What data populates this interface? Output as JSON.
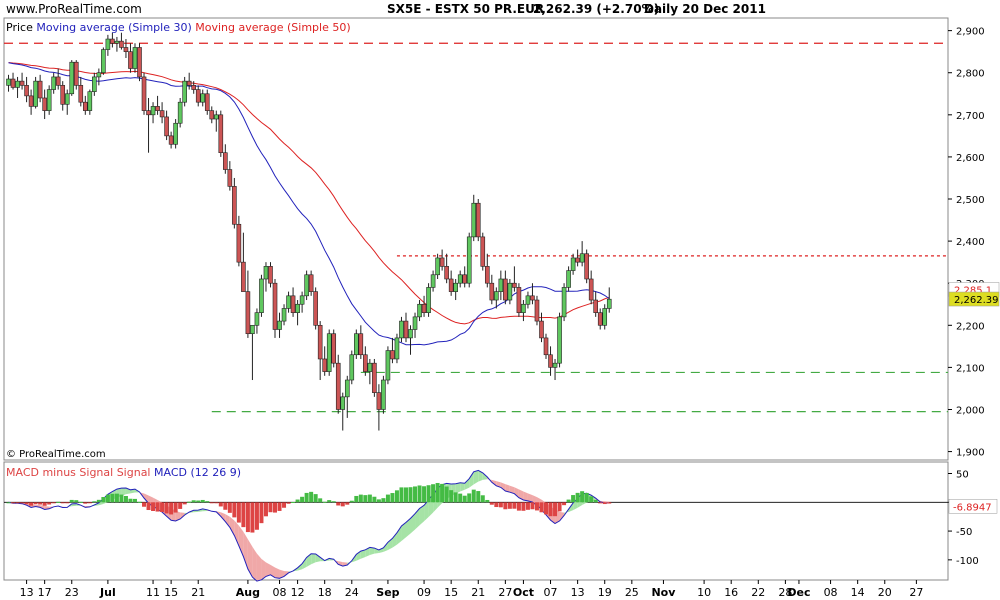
{
  "header": {
    "site": "www.ProRealTime.com",
    "instrument": "SX5E - ESTX 50 PR.EUR",
    "quote": "2,262.39 (+2.70%)",
    "period": "Daily 20 Dec 2011",
    "copyright": "© ProRealTime.com"
  },
  "colors": {
    "bull": "#5fc75f",
    "bear": "#cc5555",
    "ma30": "#2222bb",
    "ma50": "#dd2222",
    "macd_pos": "#44bb44",
    "macd_neg": "#dd4444"
  },
  "chart_data": [
    {
      "type": "candlestick",
      "legend": [
        {
          "label": "Price",
          "color": "#000000"
        },
        {
          "label": "Moving average (Simple 30)",
          "color": "#2222bb"
        },
        {
          "label": "Moving average (Simple 50)",
          "color": "#dd2222"
        }
      ],
      "yticks": [
        "2,900",
        "2,800",
        "2,700",
        "2,600",
        "2,500",
        "2,400",
        "2,300",
        "2,200",
        "2,100",
        "2,000",
        "1,900"
      ],
      "ylim": [
        1880,
        2930
      ],
      "xticks": [
        {
          "label": "13",
          "day": -18,
          "month": false
        },
        {
          "label": "17",
          "day": -14,
          "month": false
        },
        {
          "label": "23",
          "day": -8,
          "month": false
        },
        {
          "label": "Jul",
          "day": 0,
          "month": true
        },
        {
          "label": "11",
          "day": 10,
          "month": false
        },
        {
          "label": "15",
          "day": 14,
          "month": false
        },
        {
          "label": "21",
          "day": 20,
          "month": false
        },
        {
          "label": "Aug",
          "day": 31,
          "month": true
        },
        {
          "label": "08",
          "day": 38,
          "month": false
        },
        {
          "label": "12",
          "day": 42,
          "month": false
        },
        {
          "label": "18",
          "day": 48,
          "month": false
        },
        {
          "label": "24",
          "day": 54,
          "month": false
        },
        {
          "label": "Sep",
          "day": 62,
          "month": true
        },
        {
          "label": "09",
          "day": 70,
          "month": false
        },
        {
          "label": "15",
          "day": 76,
          "month": false
        },
        {
          "label": "21",
          "day": 82,
          "month": false
        },
        {
          "label": "27",
          "day": 88,
          "month": false
        },
        {
          "label": "Oct",
          "day": 92,
          "month": true
        },
        {
          "label": "07",
          "day": 98,
          "month": false
        },
        {
          "label": "13",
          "day": 104,
          "month": false
        },
        {
          "label": "19",
          "day": 110,
          "month": false
        },
        {
          "label": "25",
          "day": 116,
          "month": false
        },
        {
          "label": "Nov",
          "day": 123,
          "month": true
        },
        {
          "label": "10",
          "day": 132,
          "month": false
        },
        {
          "label": "16",
          "day": 138,
          "month": false
        },
        {
          "label": "22",
          "day": 144,
          "month": false
        },
        {
          "label": "28",
          "day": 150,
          "month": false
        },
        {
          "label": "Dec",
          "day": 153,
          "month": true
        },
        {
          "label": "08",
          "day": 160,
          "month": false
        },
        {
          "label": "14",
          "day": 166,
          "month": false
        },
        {
          "label": "20",
          "day": 172,
          "month": false
        },
        {
          "label": "27",
          "day": 179,
          "month": false
        }
      ],
      "xlim": [
        -23,
        186
      ],
      "candles": [
        [
          -22,
          2770,
          2795,
          2755,
          2785
        ],
        [
          -21,
          2785,
          2800,
          2760,
          2765
        ],
        [
          -20,
          2765,
          2790,
          2740,
          2780
        ],
        [
          -19,
          2780,
          2800,
          2760,
          2770
        ],
        [
          -18,
          2770,
          2790,
          2730,
          2745
        ],
        [
          -17,
          2745,
          2760,
          2700,
          2720
        ],
        [
          -16,
          2720,
          2790,
          2715,
          2780
        ],
        [
          -15,
          2780,
          2795,
          2730,
          2740
        ],
        [
          -14,
          2740,
          2760,
          2690,
          2710
        ],
        [
          -13,
          2710,
          2770,
          2700,
          2760
        ],
        [
          -12,
          2760,
          2800,
          2750,
          2790
        ],
        [
          -11,
          2790,
          2810,
          2760,
          2770
        ],
        [
          -10,
          2770,
          2780,
          2710,
          2725
        ],
        [
          -9,
          2725,
          2760,
          2700,
          2750
        ],
        [
          -8,
          2750,
          2830,
          2745,
          2825
        ],
        [
          -7,
          2825,
          2830,
          2760,
          2770
        ],
        [
          -6,
          2770,
          2790,
          2720,
          2730
        ],
        [
          -5,
          2730,
          2745,
          2700,
          2710
        ],
        [
          -4,
          2710,
          2760,
          2700,
          2755
        ],
        [
          -3,
          2755,
          2800,
          2745,
          2790
        ],
        [
          -2,
          2790,
          2810,
          2770,
          2800
        ],
        [
          -1,
          2800,
          2860,
          2795,
          2855
        ],
        [
          0,
          2855,
          2890,
          2840,
          2880
        ],
        [
          1,
          2880,
          2895,
          2860,
          2870
        ],
        [
          2,
          2870,
          2885,
          2850,
          2875
        ],
        [
          3,
          2875,
          2895,
          2855,
          2860
        ],
        [
          4,
          2860,
          2880,
          2835,
          2850
        ],
        [
          5,
          2850,
          2870,
          2800,
          2810
        ],
        [
          6,
          2810,
          2870,
          2800,
          2860
        ],
        [
          7,
          2860,
          2870,
          2780,
          2790
        ],
        [
          8,
          2790,
          2800,
          2700,
          2710
        ],
        [
          9,
          2710,
          2740,
          2610,
          2700
        ],
        [
          10,
          2700,
          2730,
          2680,
          2720
        ],
        [
          11,
          2720,
          2745,
          2700,
          2710
        ],
        [
          12,
          2710,
          2730,
          2680,
          2695
        ],
        [
          13,
          2695,
          2710,
          2640,
          2650
        ],
        [
          14,
          2650,
          2660,
          2620,
          2630
        ],
        [
          15,
          2630,
          2690,
          2620,
          2680
        ],
        [
          16,
          2680,
          2740,
          2670,
          2730
        ],
        [
          17,
          2730,
          2790,
          2720,
          2780
        ],
        [
          18,
          2780,
          2800,
          2760,
          2770
        ],
        [
          19,
          2770,
          2780,
          2750,
          2760
        ],
        [
          20,
          2760,
          2770,
          2720,
          2730
        ],
        [
          21,
          2730,
          2760,
          2720,
          2750
        ],
        [
          22,
          2750,
          2760,
          2700,
          2710
        ],
        [
          23,
          2710,
          2720,
          2680,
          2690
        ],
        [
          24,
          2690,
          2710,
          2660,
          2700
        ],
        [
          25,
          2700,
          2710,
          2600,
          2610
        ],
        [
          26,
          2610,
          2630,
          2560,
          2570
        ],
        [
          27,
          2570,
          2590,
          2520,
          2530
        ],
        [
          28,
          2530,
          2550,
          2430,
          2440
        ],
        [
          29,
          2440,
          2460,
          2340,
          2350
        ],
        [
          30,
          2350,
          2420,
          2290,
          2280
        ],
        [
          31,
          2280,
          2330,
          2170,
          2180
        ],
        [
          32,
          2180,
          2200,
          2070,
          2200
        ],
        [
          33,
          2200,
          2240,
          2180,
          2230
        ],
        [
          34,
          2230,
          2320,
          2220,
          2310
        ],
        [
          35,
          2310,
          2350,
          2280,
          2340
        ],
        [
          36,
          2340,
          2350,
          2290,
          2300
        ],
        [
          37,
          2300,
          2310,
          2170,
          2190
        ],
        [
          38,
          2190,
          2230,
          2170,
          2210
        ],
        [
          39,
          2210,
          2250,
          2200,
          2240
        ],
        [
          40,
          2240,
          2280,
          2230,
          2270
        ],
        [
          41,
          2270,
          2290,
          2220,
          2230
        ],
        [
          42,
          2230,
          2260,
          2200,
          2250
        ],
        [
          43,
          2250,
          2280,
          2230,
          2270
        ],
        [
          44,
          2270,
          2330,
          2260,
          2320
        ],
        [
          45,
          2320,
          2330,
          2270,
          2280
        ],
        [
          46,
          2280,
          2290,
          2190,
          2200
        ],
        [
          47,
          2200,
          2210,
          2070,
          2120
        ],
        [
          48,
          2120,
          2150,
          2080,
          2090
        ],
        [
          49,
          2090,
          2190,
          2080,
          2180
        ],
        [
          50,
          2180,
          2190,
          2100,
          2110
        ],
        [
          51,
          2110,
          2130,
          1990,
          2000
        ],
        [
          52,
          2000,
          2040,
          1950,
          2030
        ],
        [
          53,
          2030,
          2080,
          1980,
          2070
        ],
        [
          54,
          2070,
          2140,
          2060,
          2130
        ],
        [
          55,
          2130,
          2190,
          2120,
          2180
        ],
        [
          56,
          2180,
          2200,
          2120,
          2130
        ],
        [
          57,
          2130,
          2150,
          2080,
          2090
        ],
        [
          58,
          2090,
          2120,
          2060,
          2110
        ],
        [
          59,
          2110,
          2120,
          2030,
          2040
        ],
        [
          60,
          2040,
          2060,
          1950,
          2000
        ],
        [
          61,
          2000,
          2080,
          1990,
          2070
        ],
        [
          62,
          2070,
          2150,
          2060,
          2140
        ],
        [
          63,
          2140,
          2170,
          2110,
          2120
        ],
        [
          64,
          2120,
          2180,
          2110,
          2170
        ],
        [
          65,
          2170,
          2220,
          2160,
          2210
        ],
        [
          66,
          2210,
          2230,
          2160,
          2170
        ],
        [
          67,
          2170,
          2200,
          2130,
          2190
        ],
        [
          68,
          2190,
          2230,
          2170,
          2220
        ],
        [
          69,
          2220,
          2260,
          2210,
          2250
        ],
        [
          70,
          2250,
          2270,
          2220,
          2230
        ],
        [
          71,
          2230,
          2300,
          2220,
          2290
        ],
        [
          72,
          2290,
          2330,
          2280,
          2320
        ],
        [
          73,
          2320,
          2370,
          2310,
          2360
        ],
        [
          74,
          2360,
          2380,
          2330,
          2340
        ],
        [
          75,
          2340,
          2370,
          2300,
          2310
        ],
        [
          76,
          2310,
          2330,
          2270,
          2280
        ],
        [
          77,
          2280,
          2310,
          2260,
          2300
        ],
        [
          78,
          2300,
          2330,
          2290,
          2320
        ],
        [
          79,
          2320,
          2340,
          2290,
          2300
        ],
        [
          80,
          2300,
          2420,
          2290,
          2410
        ],
        [
          81,
          2410,
          2510,
          2400,
          2490
        ],
        [
          82,
          2490,
          2500,
          2400,
          2410
        ],
        [
          83,
          2410,
          2420,
          2330,
          2340
        ],
        [
          84,
          2340,
          2370,
          2290,
          2300
        ],
        [
          85,
          2300,
          2320,
          2250,
          2260
        ],
        [
          86,
          2260,
          2290,
          2240,
          2280
        ],
        [
          87,
          2280,
          2330,
          2260,
          2310
        ],
        [
          88,
          2310,
          2330,
          2250,
          2260
        ],
        [
          89,
          2260,
          2310,
          2250,
          2300
        ],
        [
          90,
          2300,
          2340,
          2280,
          2290
        ],
        [
          91,
          2290,
          2300,
          2220,
          2230
        ],
        [
          92,
          2230,
          2260,
          2210,
          2250
        ],
        [
          93,
          2250,
          2280,
          2240,
          2270
        ],
        [
          94,
          2270,
          2300,
          2250,
          2260
        ],
        [
          95,
          2260,
          2270,
          2200,
          2210
        ],
        [
          96,
          2210,
          2230,
          2160,
          2170
        ],
        [
          97,
          2170,
          2180,
          2120,
          2130
        ],
        [
          98,
          2130,
          2150,
          2080,
          2100
        ],
        [
          99,
          2100,
          2120,
          2070,
          2110
        ],
        [
          100,
          2110,
          2230,
          2100,
          2220
        ],
        [
          101,
          2220,
          2300,
          2210,
          2290
        ],
        [
          102,
          2290,
          2340,
          2280,
          2330
        ],
        [
          103,
          2330,
          2370,
          2320,
          2360
        ],
        [
          104,
          2360,
          2380,
          2340,
          2350
        ],
        [
          105,
          2350,
          2400,
          2340,
          2370
        ],
        [
          106,
          2370,
          2380,
          2300,
          2310
        ],
        [
          107,
          2310,
          2330,
          2250,
          2260
        ],
        [
          108,
          2260,
          2280,
          2220,
          2230
        ],
        [
          109,
          2230,
          2240,
          2190,
          2200
        ],
        [
          110,
          2200,
          2250,
          2190,
          2240
        ],
        [
          111,
          2240,
          2290,
          2230,
          2262
        ]
      ],
      "lines": [
        {
          "level": 2870,
          "x0": -23,
          "x1": 186,
          "color": "#dd2222",
          "dash": "long"
        },
        {
          "level": 2365,
          "x0": 64,
          "x1": 186,
          "color": "#dd2222",
          "dash": "short"
        },
        {
          "level": 2088,
          "x0": 56,
          "x1": 186,
          "color": "#44aa44",
          "dash": "long"
        },
        {
          "level": 1995,
          "x0": 23,
          "x1": 186,
          "color": "#44aa44",
          "dash": "long"
        }
      ],
      "tags": [
        {
          "text": "2,285.1",
          "value": 2285.1,
          "bg": "#ffffff",
          "fg": "#dd2222"
        },
        {
          "text": "2,262.39",
          "value": 2262.39,
          "bg": "#dddd22",
          "fg": "#000000"
        }
      ]
    },
    {
      "type": "histogram-with-lines",
      "legend": [
        {
          "label": "MACD minus Signal Signal",
          "color": "#dd4444"
        },
        {
          "label": "MACD (12 26 9)",
          "color": "#2222bb"
        }
      ],
      "yticks": [
        "50",
        "0",
        "-50",
        "-100"
      ],
      "ylim": [
        -135,
        70
      ],
      "last_value": "-6.8947"
    }
  ]
}
